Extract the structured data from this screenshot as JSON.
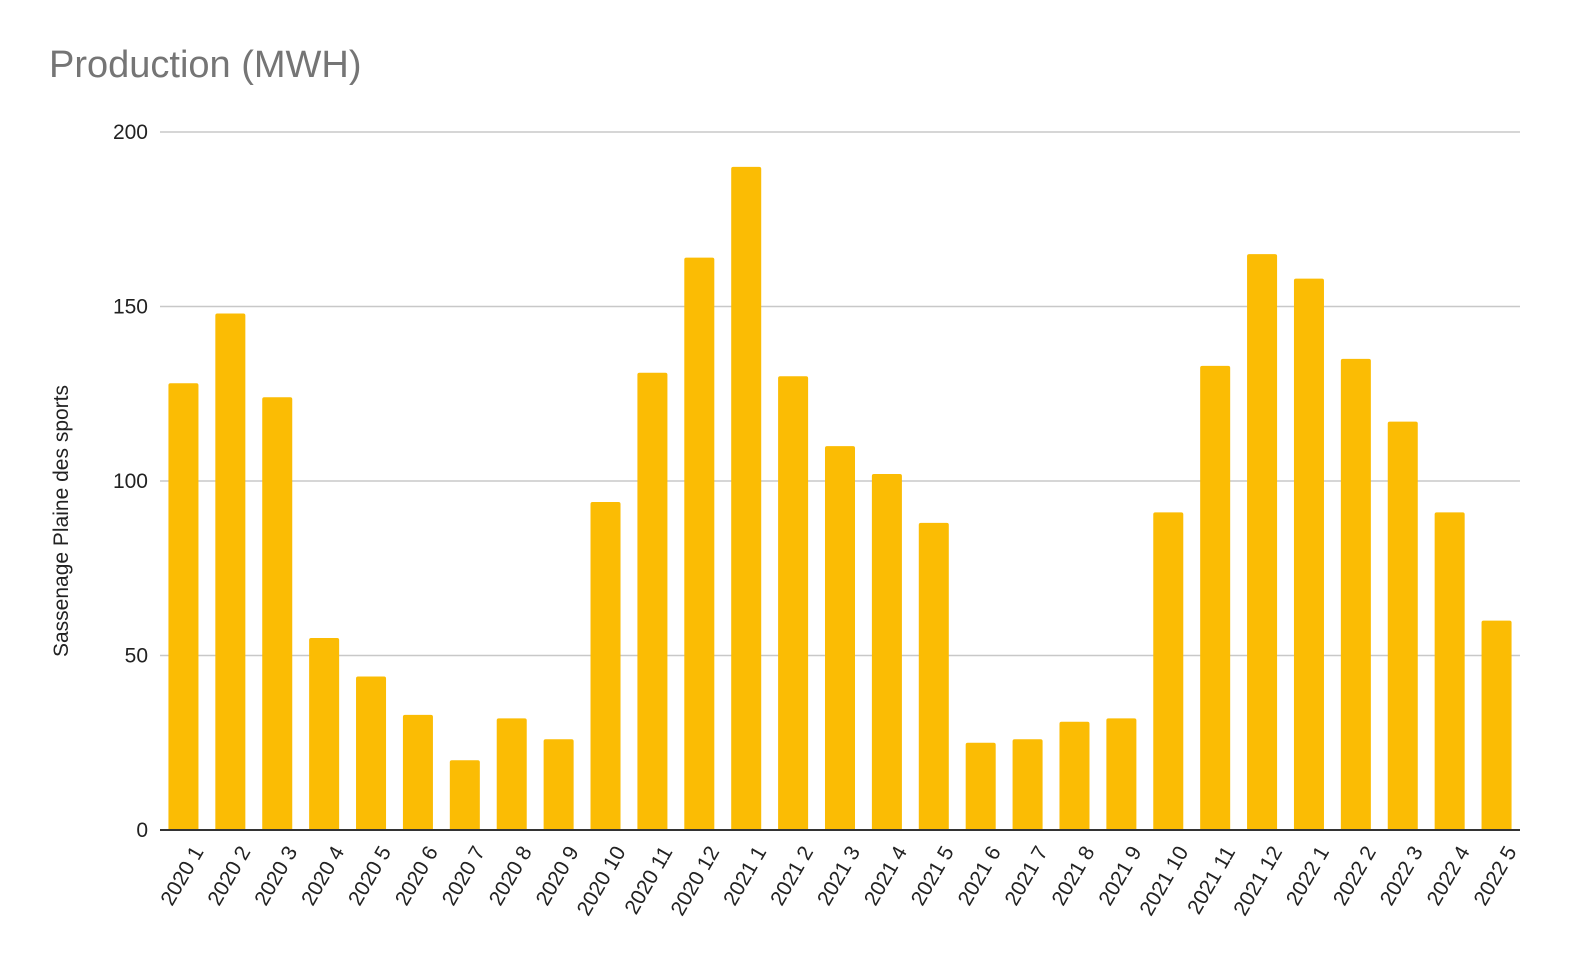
{
  "chart_data": {
    "type": "bar",
    "title": "Production (MWH)",
    "xlabel": "",
    "ylabel": "Sassenage Plaine des sports",
    "ylim": [
      0,
      200
    ],
    "yticks": [
      0,
      50,
      100,
      150,
      200
    ],
    "grid": true,
    "legend": "none",
    "bar_color": "#fbbc04",
    "grid_color": "#c8c8c8",
    "axis_color": "#333333",
    "categories": [
      "2020 1",
      "2020 2",
      "2020 3",
      "2020 4",
      "2020 5",
      "2020 6",
      "2020 7",
      "2020 8",
      "2020 9",
      "2020 10",
      "2020 11",
      "2020 12",
      "2021 1",
      "2021 2",
      "2021 3",
      "2021 4",
      "2021 5",
      "2021 6",
      "2021 7",
      "2021 8",
      "2021 9",
      "2021 10",
      "2021 11",
      "2021 12",
      "2022 1",
      "2022 2",
      "2022 3",
      "2022 4",
      "2022 5"
    ],
    "values": [
      128,
      148,
      124,
      55,
      44,
      33,
      20,
      32,
      26,
      94,
      131,
      164,
      190,
      130,
      110,
      102,
      88,
      25,
      26,
      31,
      32,
      91,
      133,
      165,
      158,
      135,
      117,
      91,
      60
    ]
  }
}
